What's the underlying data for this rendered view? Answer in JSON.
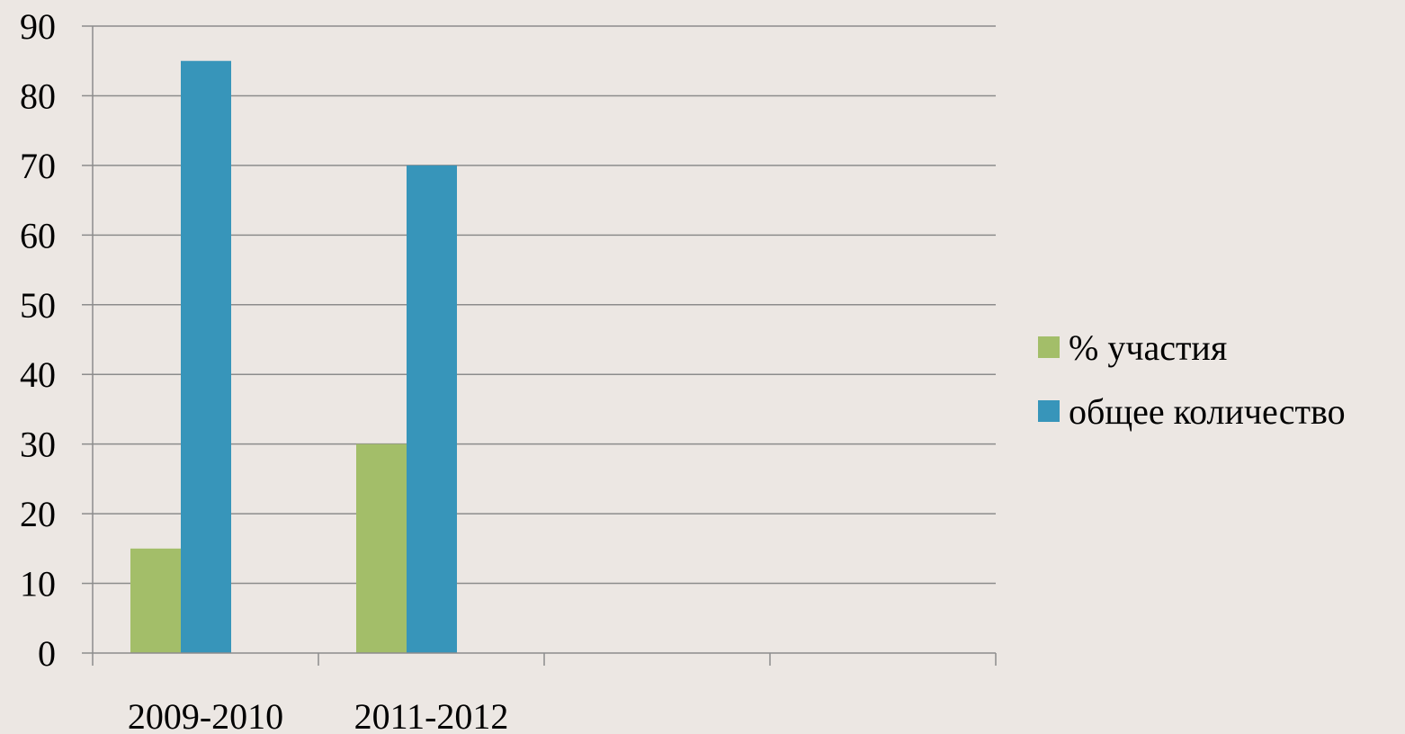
{
  "chart_data": {
    "type": "bar",
    "categories": [
      "2009-2010",
      "2011-2012",
      "",
      ""
    ],
    "series": [
      {
        "name": "% участия",
        "values": [
          15,
          30,
          null,
          null
        ],
        "color": "#A3BE69"
      },
      {
        "name": "общее количество",
        "values": [
          85,
          70,
          null,
          null
        ],
        "color": "#3795BA"
      }
    ],
    "ylim": [
      0,
      90
    ],
    "yticks": [
      0,
      10,
      20,
      30,
      40,
      50,
      60,
      70,
      80,
      90
    ],
    "grid": true,
    "legend": "right",
    "colors": {
      "background": "#ECE7E3",
      "gridline": "#8C8C8C",
      "axis": "#8C8C8C"
    }
  }
}
